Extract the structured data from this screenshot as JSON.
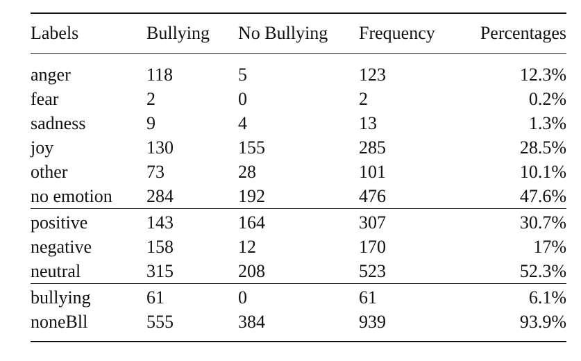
{
  "table": {
    "headers": [
      "Labels",
      "Bullying",
      "No Bullying",
      "Frequency",
      "Percentages"
    ],
    "groups": [
      [
        [
          "anger",
          "118",
          "5",
          "123",
          "12.3%"
        ],
        [
          "fear",
          "2",
          "0",
          "2",
          "0.2%"
        ],
        [
          "sadness",
          "9",
          "4",
          "13",
          "1.3%"
        ],
        [
          "joy",
          "130",
          "155",
          "285",
          "28.5%"
        ],
        [
          "other",
          "73",
          "28",
          "101",
          "10.1%"
        ],
        [
          "no emotion",
          "284",
          "192",
          "476",
          "47.6%"
        ]
      ],
      [
        [
          "positive",
          "143",
          "164",
          "307",
          "30.7%"
        ],
        [
          "negative",
          "158",
          "12",
          "170",
          "17%"
        ],
        [
          "neutral",
          "315",
          "208",
          "523",
          "52.3%"
        ]
      ],
      [
        [
          "bullying",
          "61",
          "0",
          "61",
          "6.1%"
        ],
        [
          "noneBll",
          "555",
          "384",
          "939",
          "93.9%"
        ]
      ]
    ]
  }
}
